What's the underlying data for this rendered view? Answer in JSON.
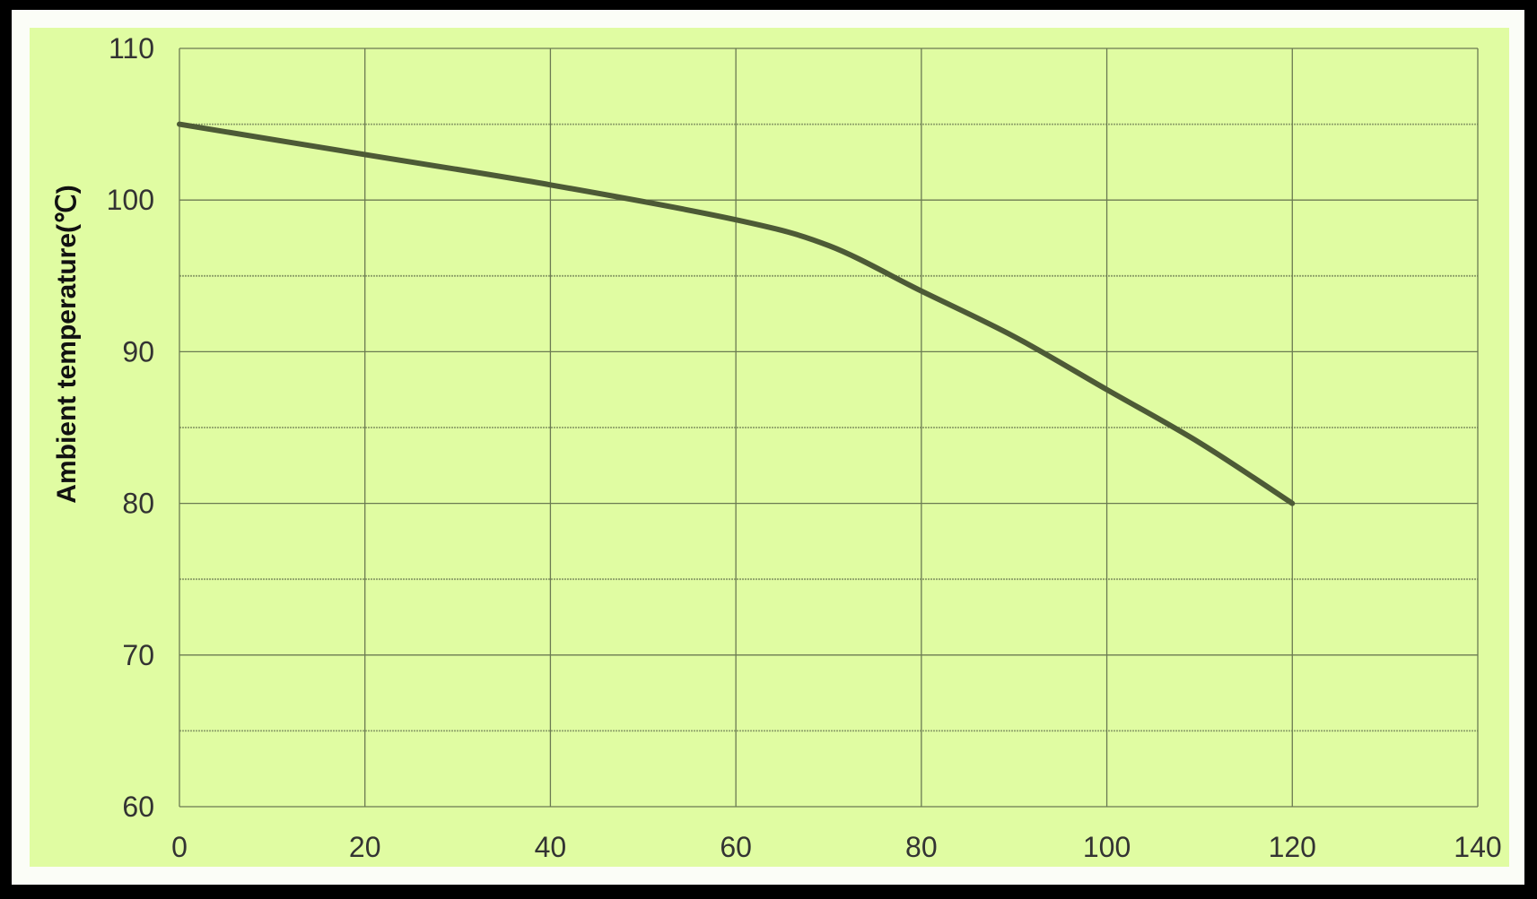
{
  "chart_data": {
    "type": "line",
    "title": "",
    "xlabel": "",
    "ylabel": "Ambient temperature(℃)",
    "xlim": [
      0,
      140
    ],
    "ylim": [
      60,
      110
    ],
    "xticks": [
      0,
      20,
      40,
      60,
      80,
      100,
      120,
      140
    ],
    "yticks": [
      60,
      70,
      80,
      90,
      100,
      110
    ],
    "grid": true,
    "series": [
      {
        "x": [
          0,
          20,
          40,
          60,
          70,
          80,
          90,
          100,
          110,
          120
        ],
        "y": [
          105,
          103,
          101,
          98.7,
          97,
          94,
          91,
          87.5,
          84,
          80
        ]
      }
    ],
    "colors": {
      "background": "#e0fca2",
      "line": "#4d5a36",
      "grid": "#6b7a52"
    }
  }
}
